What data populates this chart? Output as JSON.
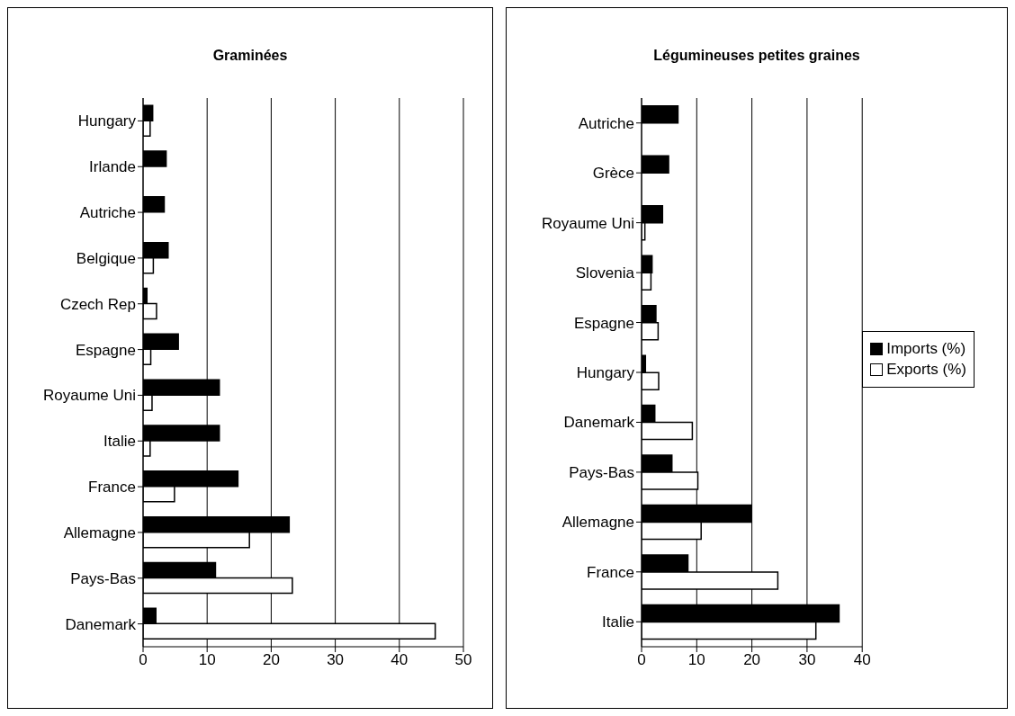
{
  "chart_data": [
    {
      "type": "bar",
      "orientation": "horizontal",
      "title": "Graminées",
      "categories": [
        "Hungary",
        "Irlande",
        "Autriche",
        "Belgique",
        "Czech Rep",
        "Espagne",
        "Royaume Uni",
        "Italie",
        "France",
        "Allemagne",
        "Pays-Bas",
        "Danemark"
      ],
      "series": [
        {
          "color": "#000000",
          "values": [
            1.5,
            3.6,
            3.3,
            3.9,
            0.6,
            5.5,
            11.9,
            11.9,
            14.8,
            22.8,
            11.3,
            2.0
          ]
        },
        {
          "color": "#ffffff",
          "values": [
            1.1,
            null,
            null,
            1.6,
            2.1,
            1.2,
            1.4,
            1.1,
            4.9,
            16.6,
            23.3,
            45.6
          ]
        }
      ],
      "xlim": [
        0,
        50
      ],
      "xticks": [
        0,
        10,
        20,
        30,
        40,
        50
      ],
      "grid": "x"
    },
    {
      "type": "bar",
      "orientation": "horizontal",
      "title": "Légumineuses petites graines",
      "categories": [
        "Autriche",
        "Grèce",
        "Royaume Uni",
        "Slovenia",
        "Espagne",
        "Hungary",
        "Danemark",
        "Pays-Bas",
        "Allemagne",
        "France",
        "Italie"
      ],
      "series": [
        {
          "name": "Imports (%)",
          "color": "#000000",
          "values": [
            6.6,
            4.9,
            3.8,
            1.9,
            2.6,
            0.7,
            2.4,
            5.5,
            19.9,
            8.4,
            35.8
          ]
        },
        {
          "name": "Exports (%)",
          "color": "#ffffff",
          "values": [
            null,
            null,
            0.6,
            1.7,
            3.0,
            3.1,
            9.2,
            10.2,
            10.8,
            24.7,
            31.6
          ]
        }
      ],
      "xlim": [
        0,
        40
      ],
      "xticks": [
        0,
        10,
        20,
        30,
        40
      ],
      "grid": "x",
      "legend": "right"
    }
  ]
}
